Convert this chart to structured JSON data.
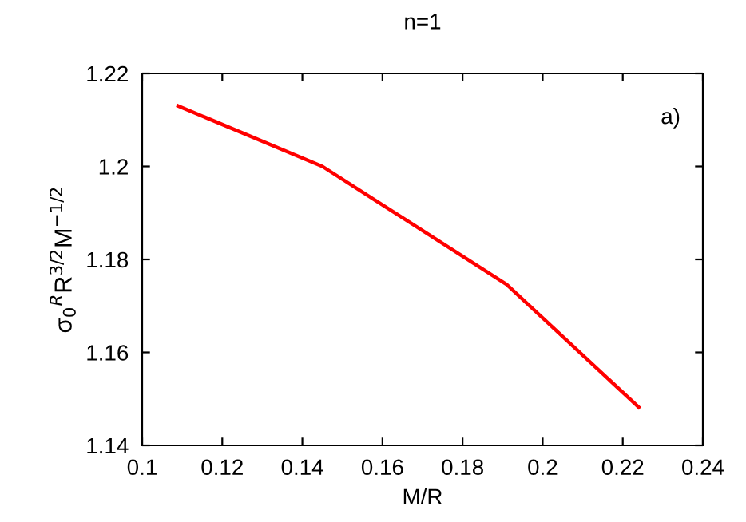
{
  "chart_data": {
    "type": "line",
    "title": "n=1",
    "xlabel": "M/R",
    "ylabel": "σ$_{0}$$^{R}$R$^{3/2}$M$^{−1/2}$",
    "annotations": [
      "a)"
    ],
    "series": [
      {
        "color": "#ff0000",
        "x": [
          0.109,
          0.145,
          0.191,
          0.224
        ],
        "values": [
          1.213,
          1.2,
          1.1746,
          1.1482
        ]
      }
    ],
    "xlim": [
      0.1,
      0.24
    ],
    "xticks": [
      0.1,
      0.12,
      0.14,
      0.16,
      0.18,
      0.2,
      0.22,
      0.24
    ],
    "ylim": [
      1.14,
      1.22
    ],
    "yticks": [
      1.14,
      1.16,
      1.18,
      1.2,
      1.22
    ],
    "grid": false,
    "legend": false
  }
}
